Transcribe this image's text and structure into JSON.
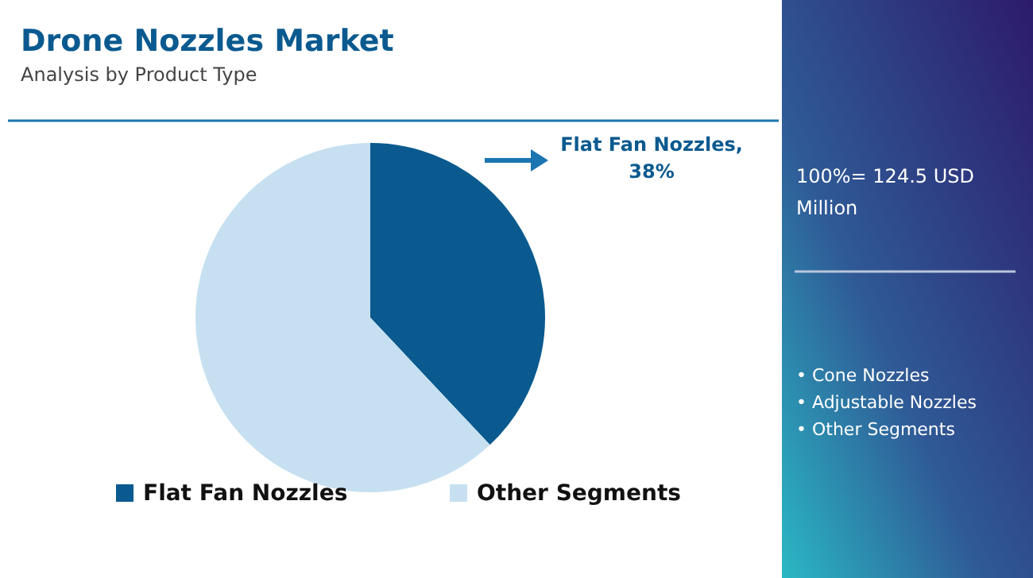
{
  "chart_data": {
    "type": "pie",
    "title": "Drone Nozzles Market",
    "subtitle": "Analysis by Product Type",
    "categories": [
      "Flat Fan Nozzles",
      "Other Segments"
    ],
    "values": [
      38,
      62
    ],
    "colors": [
      "#0a5a8f",
      "#c6e0f1"
    ],
    "value_labels": [
      "Flat Fan Nozzles, 38%",
      null
    ],
    "legend": "bottom",
    "annotations": [
      "100%= 124.5 USD Million",
      "• Cone Nozzles",
      "• Adjustable Nozzles",
      "• Other Segments"
    ]
  }
}
